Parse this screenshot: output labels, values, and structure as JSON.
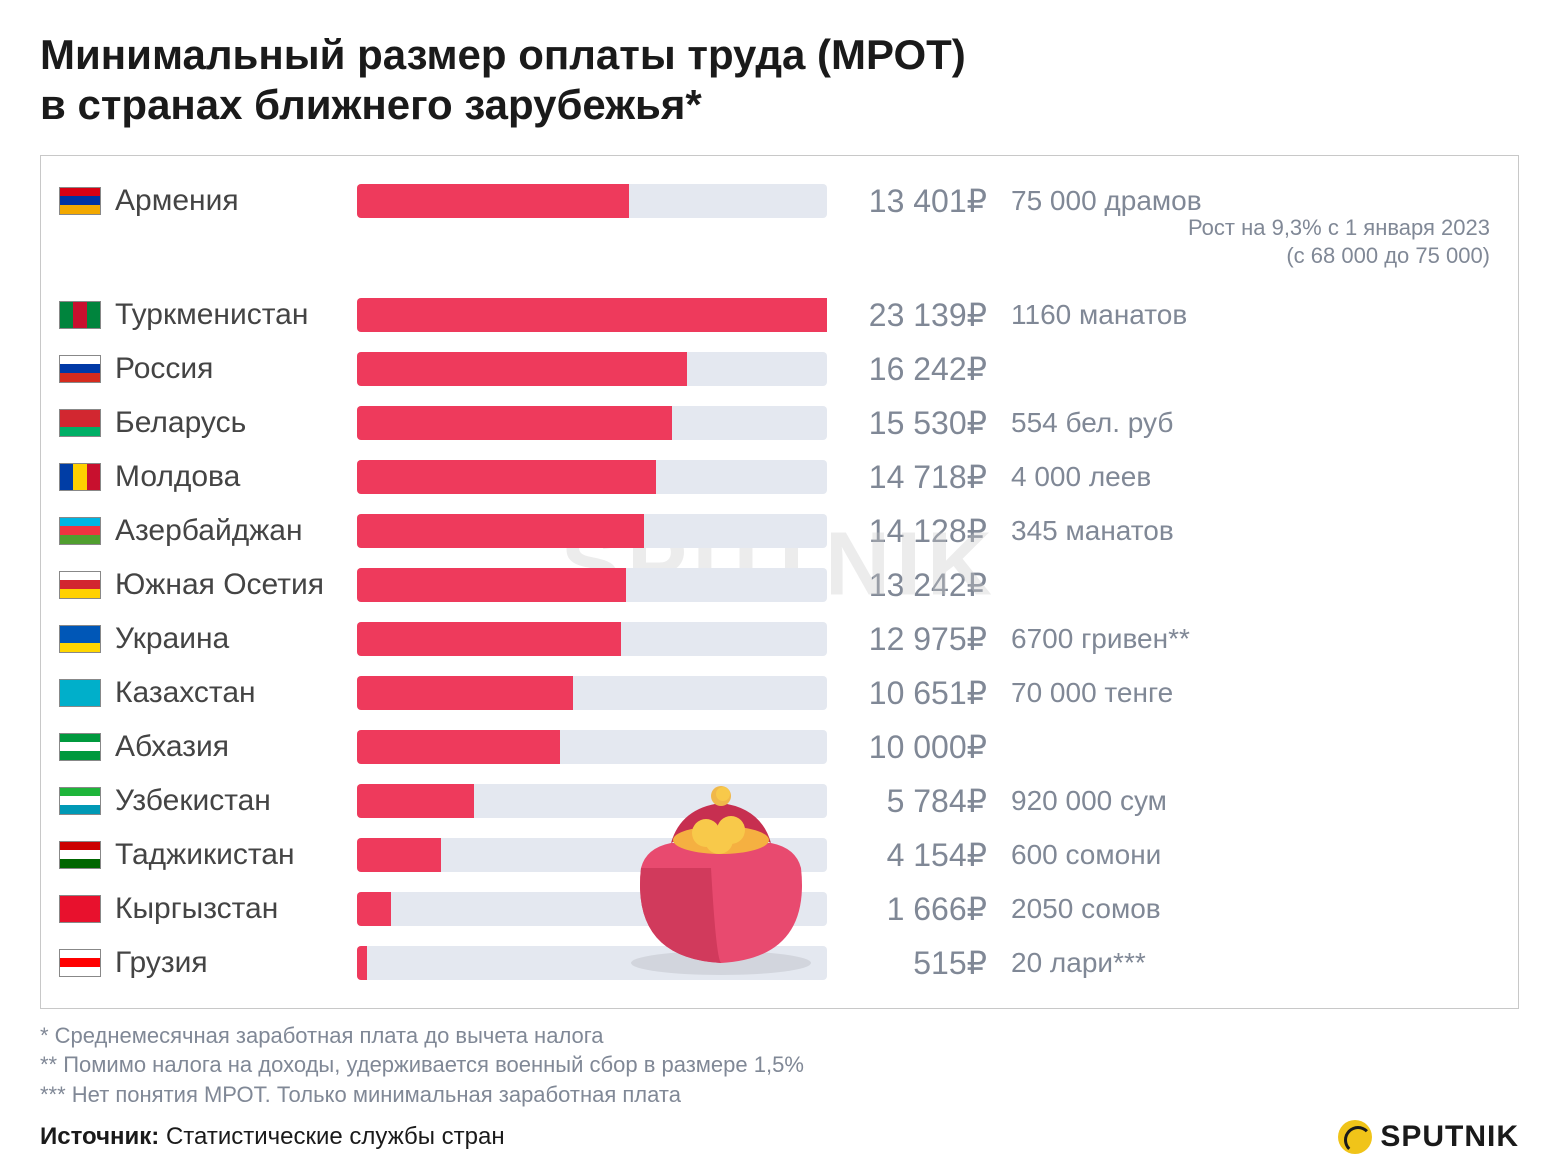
{
  "title_line1": "Минимальный размер оплаты труда (МРОТ)",
  "title_line2": "в странах ближнего зарубежья*",
  "chart": {
    "type": "bar",
    "max_value": 23139,
    "bar_color": "#ee3a5c",
    "bar_track_color": "#e4e8f0",
    "text_color": "#808896",
    "label_fontsize": 30,
    "value_fontsize": 32,
    "rows": [
      {
        "country": "Армения",
        "value_rub": "13 401₽",
        "value_num": 13401,
        "local": "75 000 драмов",
        "flag": [
          "#d90012",
          "#0033a0",
          "#f2a800"
        ],
        "sub1": "Рост на 9,3% с 1 января 2023",
        "sub2": "(с 68 000 до 75 000)"
      },
      {
        "country": "Туркменистан",
        "value_rub": "23 139₽",
        "value_num": 23139,
        "local": "1160 манатов",
        "flag": [
          "#00843d",
          "#c8102e",
          "#00843d"
        ],
        "vertical": true
      },
      {
        "country": "Россия",
        "value_rub": "16 242₽",
        "value_num": 16242,
        "local": "",
        "flag": [
          "#ffffff",
          "#0039a6",
          "#d52b1e"
        ]
      },
      {
        "country": "Беларусь",
        "value_rub": "15 530₽",
        "value_num": 15530,
        "local": "554 бел. руб",
        "flag": [
          "#d22730",
          "#d22730",
          "#00af66"
        ]
      },
      {
        "country": "Молдова",
        "value_rub": "14 718₽",
        "value_num": 14718,
        "local": "4 000 леев",
        "flag": [
          "#003da5",
          "#ffd100",
          "#c8102e"
        ],
        "vertical": true
      },
      {
        "country": "Азербайджан",
        "value_rub": "14 128₽",
        "value_num": 14128,
        "local": "345 манатов",
        "flag": [
          "#00b5e2",
          "#ef3340",
          "#509e2f"
        ]
      },
      {
        "country": "Южная Осетия",
        "value_rub": "13 242₽",
        "value_num": 13242,
        "local": "",
        "flag": [
          "#ffffff",
          "#d22730",
          "#ffd100"
        ]
      },
      {
        "country": "Украина",
        "value_rub": "12 975₽",
        "value_num": 12975,
        "local": "6700 гривен**",
        "flag": [
          "#0057b7",
          "#0057b7",
          "#ffd700"
        ]
      },
      {
        "country": "Казахстан",
        "value_rub": "10 651₽",
        "value_num": 10651,
        "local": "70 000 тенге",
        "flag": [
          "#00afca",
          "#00afca",
          "#00afca"
        ]
      },
      {
        "country": "Абхазия",
        "value_rub": "10 000₽",
        "value_num": 10000,
        "local": "",
        "flag": [
          "#00993e",
          "#ffffff",
          "#00993e"
        ]
      },
      {
        "country": "Узбекистан",
        "value_rub": "5 784₽",
        "value_num": 5784,
        "local": "920 000 сум",
        "flag": [
          "#1eb53a",
          "#ffffff",
          "#0099b5"
        ]
      },
      {
        "country": "Таджикистан",
        "value_rub": "4 154₽",
        "value_num": 4154,
        "local": "600 сомони",
        "flag": [
          "#cc0000",
          "#ffffff",
          "#006600"
        ]
      },
      {
        "country": "Кыргызстан",
        "value_rub": "1 666₽",
        "value_num": 1666,
        "local": "2050 сомов",
        "flag": [
          "#e8112d",
          "#e8112d",
          "#e8112d"
        ]
      },
      {
        "country": "Грузия",
        "value_rub": "515₽",
        "value_num": 515,
        "local": "20 лари***",
        "flag": [
          "#ffffff",
          "#ff0000",
          "#ffffff"
        ]
      }
    ]
  },
  "watermark": "SPUTNIK",
  "footnote1": "* Среднемесячная заработная плата до вычета налога",
  "footnote2": "** Помимо налога на доходы, удерживается военный сбор в размере 1,5%",
  "footnote3": "*** Нет понятия МРОТ. Только минимальная заработная плата",
  "source_label": "Источник:",
  "source_value": "Статистические службы стран",
  "logo_text": "SPUTNIK"
}
